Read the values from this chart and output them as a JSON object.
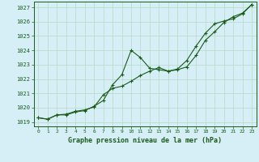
{
  "title": "Graphe pression niveau de la mer (hPa)",
  "xlim": [
    -0.5,
    23.5
  ],
  "ylim": [
    1018.7,
    1027.4
  ],
  "yticks": [
    1019,
    1020,
    1021,
    1022,
    1023,
    1024,
    1025,
    1026,
    1027
  ],
  "xticks": [
    0,
    1,
    2,
    3,
    4,
    5,
    6,
    7,
    8,
    9,
    10,
    11,
    12,
    13,
    14,
    15,
    16,
    17,
    18,
    19,
    20,
    21,
    22,
    23
  ],
  "xtick_labels": [
    "0",
    "1",
    "2",
    "3",
    "4",
    "5",
    "6",
    "7",
    "8",
    "9",
    "10",
    "11",
    "12",
    "13",
    "14",
    "15",
    "16",
    "17",
    "18",
    "19",
    "20",
    "21",
    "22",
    "23"
  ],
  "bg_color": "#d6eef5",
  "grid_color": "#b8d8c8",
  "line_color": "#1a5c1a",
  "line1_y": [
    1019.3,
    1019.2,
    1019.5,
    1019.5,
    1019.7,
    1019.8,
    1020.1,
    1020.5,
    1021.6,
    1022.3,
    1024.0,
    1023.5,
    1022.75,
    1022.65,
    1022.55,
    1022.7,
    1023.3,
    1024.3,
    1025.2,
    1025.85,
    1026.05,
    1026.2,
    1026.55,
    1027.2
  ],
  "line2_y": [
    1019.3,
    1019.2,
    1019.5,
    1019.55,
    1019.75,
    1019.85,
    1020.05,
    1020.9,
    1021.35,
    1021.5,
    1021.85,
    1022.25,
    1022.55,
    1022.8,
    1022.55,
    1022.65,
    1022.85,
    1023.65,
    1024.7,
    1025.3,
    1025.95,
    1026.35,
    1026.6,
    1027.2
  ]
}
